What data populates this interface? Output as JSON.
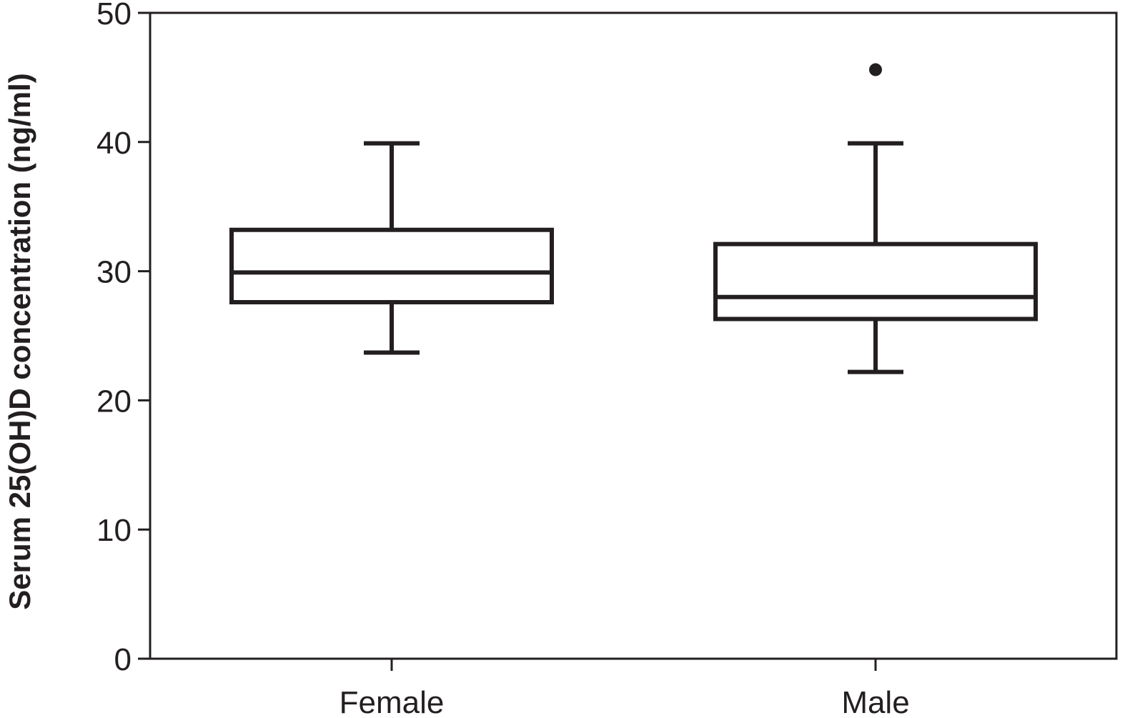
{
  "chart_data": {
    "type": "box",
    "title": "",
    "xlabel": "",
    "ylabel": "Serum 25(OH)D concentration (ng/ml)",
    "ylim": [
      0,
      50
    ],
    "yticks": [
      "0",
      "10",
      "20",
      "30",
      "40",
      "50"
    ],
    "categories": [
      "Female",
      "Male"
    ],
    "boxes": [
      {
        "category": "Female",
        "whisker_low": 23.7,
        "q1": 27.6,
        "median": 29.9,
        "q3": 33.2,
        "whisker_high": 39.9,
        "outliers": []
      },
      {
        "category": "Male",
        "whisker_low": 22.2,
        "q1": 26.3,
        "median": 28.0,
        "q3": 32.1,
        "whisker_high": 39.9,
        "outliers": [
          45.6
        ]
      }
    ],
    "grid": false,
    "legend": "none",
    "colors": {
      "stroke": "#231f20",
      "fill": "#ffffff"
    }
  }
}
